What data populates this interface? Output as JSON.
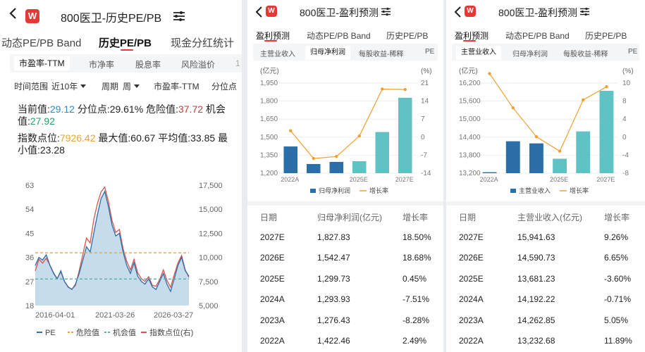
{
  "panel1": {
    "title": "800医卫-历史PE/PB",
    "tabs": [
      "动态PE/PB Band",
      "历史PE/PB",
      "现金分红统计"
    ],
    "subtabs": [
      "市盈率-TTM",
      "市净率",
      "股息率",
      "风险溢价",
      "1"
    ],
    "filters": {
      "range_label": "时间范围",
      "range_value": "近10年",
      "period_label": "周期",
      "period_value": "周",
      "metric_value": "市盈率-TTM",
      "pct_label": "分位点"
    },
    "stats": {
      "current_label": "当前值:",
      "current_value": "29.12",
      "percentile_label": "分位点:",
      "percentile_value": "29.61%",
      "danger_label": "危险值:",
      "danger_value": "37.72",
      "chance_label": "机会值:",
      "chance_value": "27.92",
      "index_label": "指数点位:",
      "index_value": "7926.42",
      "max_label": "最大值:",
      "max_value": "60.67",
      "avg_label": "平均值:",
      "avg_value": "33.85",
      "min_label": "最小值:",
      "min_value": "23.28"
    },
    "chart_data": {
      "type": "line",
      "x_ticks": [
        "2016-04-01",
        "2021-03-26",
        "2026-03-27"
      ],
      "y_left_ticks": [
        "63",
        "54",
        "45",
        "36",
        "27",
        "18"
      ],
      "y_right_ticks": [
        "17,500",
        "15,000",
        "12,500",
        "10,000",
        "7,500",
        "5,000"
      ],
      "ylim_left": [
        18,
        63
      ],
      "ylim_right": [
        5000,
        17500
      ],
      "danger": 37.72,
      "chance": 27.92,
      "series": [
        {
          "name": "PE",
          "color": "#2a6fad",
          "values": [
            33,
            36,
            35,
            37,
            33,
            30,
            28,
            31,
            27,
            25,
            24,
            26,
            30,
            35,
            40,
            38,
            45,
            52,
            58,
            60.67,
            55,
            48,
            44,
            45,
            38,
            33,
            30,
            34,
            29,
            27,
            26,
            28,
            25,
            24,
            27,
            30,
            26,
            23.28,
            28,
            33,
            36,
            31,
            29
          ]
        },
        {
          "name": "指数点位(右)",
          "color": "#d9534f",
          "values": [
            8600,
            9800,
            9400,
            9900,
            9200,
            8400,
            7800,
            8500,
            7500,
            6900,
            6700,
            7100,
            8600,
            10300,
            12000,
            11500,
            13900,
            15600,
            16800,
            17300,
            15800,
            13800,
            12600,
            12900,
            10900,
            9600,
            8700,
            9800,
            8400,
            7800,
            7500,
            8000,
            7100,
            7000,
            7700,
            8700,
            7600,
            6900,
            8200,
            9400,
            10200,
            8700,
            7926.42
          ]
        },
        {
          "name": "危险值",
          "color": "#e7a53a"
        },
        {
          "name": "机会值",
          "color": "#5ab0a8"
        }
      ]
    }
  },
  "panel2": {
    "title": "800医卫-盈利预测",
    "tabs": [
      "盈利预测",
      "动态PE/PB Band",
      "历史PE/PB"
    ],
    "subtabs": [
      "主营业收入",
      "归母净利润",
      "每股收益-稀释",
      "PE"
    ],
    "chart_data": {
      "type": "bar",
      "categories": [
        "2022A",
        "2023A",
        "2024A",
        "2025E",
        "2026E",
        "2027E"
      ],
      "x_tick_labels": [
        "2022A",
        "",
        "",
        "2025E",
        "",
        "2027E"
      ],
      "y_left_unit": "(亿元)",
      "y_right_unit": "(%)",
      "y_left_ticks": [
        "1,950",
        "1,800",
        "1,650",
        "1,500",
        "1,350",
        "1,200"
      ],
      "y_right_ticks": [
        "21",
        "14",
        "7",
        "0",
        "-7",
        "-14"
      ],
      "ylim_left": [
        1200,
        1950
      ],
      "ylim_right": [
        -14,
        21
      ],
      "series": [
        {
          "name": "归母净利润",
          "values": [
            1422.46,
            1276.43,
            1293.93,
            1299.73,
            1542.47,
            1827.83
          ]
        },
        {
          "name": "增长率",
          "values": [
            2.49,
            -8.28,
            -7.51,
            0.45,
            18.68,
            18.5
          ]
        }
      ]
    },
    "table": {
      "headers": [
        "日期",
        "归母净利润(亿元)",
        "增长率"
      ],
      "rows": [
        [
          "2027E",
          "1,827.83",
          "18.50%"
        ],
        [
          "2026E",
          "1,542.47",
          "18.68%"
        ],
        [
          "2025E",
          "1,299.73",
          "0.45%"
        ],
        [
          "2024A",
          "1,293.93",
          "-7.51%"
        ],
        [
          "2023A",
          "1,276.43",
          "-8.28%"
        ],
        [
          "2022A",
          "1,422.46",
          "2.49%"
        ]
      ]
    }
  },
  "panel3": {
    "title": "800医卫-盈利预测",
    "tabs": [
      "盈利预测",
      "动态PE/PB Band",
      "历史PE/PB"
    ],
    "subtabs": [
      "主营业收入",
      "归母净利润",
      "每股收益-稀释",
      "PE"
    ],
    "chart_data": {
      "type": "bar",
      "categories": [
        "2022A",
        "2023A",
        "2024A",
        "2025E",
        "2026E",
        "2027E"
      ],
      "x_tick_labels": [
        "2022A",
        "",
        "",
        "2025E",
        "",
        "2027E"
      ],
      "y_left_unit": "(亿元)",
      "y_right_unit": "(%)",
      "y_left_ticks": [
        "16,200",
        "15,600",
        "15,000",
        "14,400",
        "13,800",
        "13,200"
      ],
      "y_right_ticks": [
        "10",
        "8",
        "4",
        "0",
        "-4",
        "-8"
      ],
      "ylim_left": [
        13200,
        16200
      ],
      "ylim_right": [
        -8,
        10
      ],
      "series": [
        {
          "name": "主营业收入",
          "values": [
            13232.68,
            14262.85,
            14192.22,
            13681.23,
            14590.73,
            15941.63
          ]
        },
        {
          "name": "增长率",
          "values": [
            11.89,
            5.05,
            -0.71,
            -3.6,
            6.65,
            9.26
          ]
        }
      ]
    },
    "table": {
      "headers": [
        "日期",
        "主营业收入(亿元)",
        "增长率"
      ],
      "rows": [
        [
          "2027E",
          "15,941.63",
          "9.26%"
        ],
        [
          "2026E",
          "14,590.73",
          "6.65%"
        ],
        [
          "2025E",
          "13,681.23",
          "-3.60%"
        ],
        [
          "2024A",
          "14,192.22",
          "-0.71%"
        ],
        [
          "2023A",
          "14,262.85",
          "5.05%"
        ],
        [
          "2022A",
          "13,232.68",
          "11.89%"
        ]
      ]
    }
  },
  "colors": {
    "accent": "#e53935",
    "bar_dark": "#2a6fa8",
    "bar_light": "#5fc3c6",
    "growth": "#f0a030"
  },
  "icons": {
    "back": "chevron-left-icon",
    "logo": "w-logo",
    "menu": "settings-sliders-icon"
  }
}
